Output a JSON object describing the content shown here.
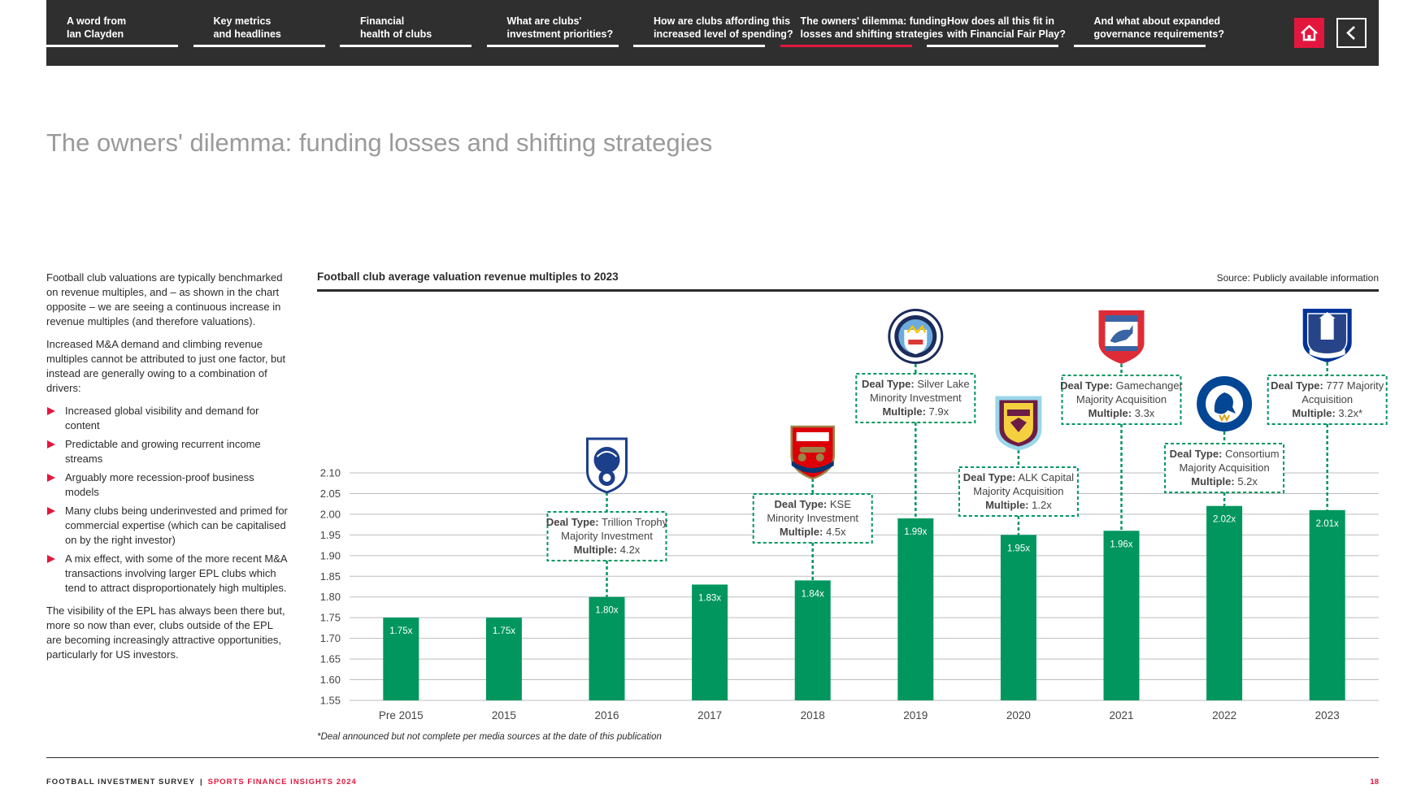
{
  "nav": {
    "items": [
      {
        "line1": "A word from",
        "line2": "Ian Clayden",
        "active": false
      },
      {
        "line1": "Key metrics",
        "line2": "and headlines",
        "active": false
      },
      {
        "line1": "Financial",
        "line2": "health of clubs",
        "active": false
      },
      {
        "line1": "What are clubs'",
        "line2": "investment priorities?",
        "active": false
      },
      {
        "line1": "How are clubs affording this",
        "line2": "increased level of spending?",
        "active": false
      },
      {
        "line1": "The owners' dilemma: funding",
        "line2": "losses and shifting strategies",
        "active": true
      },
      {
        "line1": "How does all this fit in",
        "line2": "with Financial Fair Play?",
        "active": false
      },
      {
        "line1": "And what about expanded",
        "line2": "governance requirements?",
        "active": false
      }
    ],
    "home_icon": "home-icon",
    "prev_icon": "chevron-left-icon",
    "next_icon": "chevron-right-icon",
    "accent": "#e3173e"
  },
  "page_title": "The owners' dilemma: funding losses and shifting strategies",
  "body": {
    "para1": "Football club valuations are typically benchmarked on revenue multiples, and – as shown in the chart opposite – we are seeing a continuous increase in revenue multiples (and therefore valuations).",
    "para2": "Increased M&A demand and climbing revenue multiples cannot be attributed to just one factor, but instead are generally owing to a combination of drivers:",
    "bullets": [
      "Increased global visibility and demand for content",
      "Predictable and growing recurrent income streams",
      "Arguably more recession-proof business models",
      "Many clubs being underinvested and primed for commercial expertise (which can be capitalised on by the right investor)",
      "A mix effect, with some of the more recent M&A transactions involving larger EPL clubs which tend to attract disproportionately high multiples."
    ],
    "para3": "The visibility of the EPL has always been there but, more so now than ever, clubs outside of the EPL are becoming increasingly attractive opportunities, particularly for US investors."
  },
  "chart_data": {
    "type": "bar",
    "title": "Football club average valuation revenue multiples to 2023",
    "source": "Source: Publicly available information",
    "categories": [
      "Pre 2015",
      "2015",
      "2016",
      "2017",
      "2018",
      "2019",
      "2020",
      "2021",
      "2022",
      "2023"
    ],
    "values": [
      1.75,
      1.75,
      1.8,
      1.83,
      1.84,
      1.99,
      1.95,
      1.96,
      2.02,
      2.01
    ],
    "value_labels": [
      "1.75x",
      "1.75x",
      "1.80x",
      "1.83x",
      "1.84x",
      "1.99x",
      "1.95x",
      "1.96x",
      "2.02x",
      "2.01x"
    ],
    "yticks": [
      "2.10",
      "2.05",
      "2.00",
      "1.95",
      "1.90",
      "1.85",
      "1.80",
      "1.75",
      "1.70",
      "1.65",
      "1.60",
      "1.55"
    ],
    "ylim": [
      1.55,
      2.1
    ],
    "bar_color": "#00965e",
    "grid": true,
    "deal_type_label": "Deal Type:",
    "multiple_label": "Multiple:",
    "annotations": [
      {
        "category": "2016",
        "club_icon": "birmingham-city-crest-icon",
        "deal_type": "Trillion Trophy",
        "deal_line2": "Majority Investment",
        "multiple": "4.2x"
      },
      {
        "category": "2018",
        "club_icon": "arsenal-crest-icon",
        "deal_type": "KSE",
        "deal_line2": "Minority Investment",
        "multiple": "4.5x"
      },
      {
        "category": "2019",
        "club_icon": "manchester-city-crest-icon",
        "deal_type": "Silver Lake",
        "deal_line2": "Minority Investment",
        "multiple": "7.9x"
      },
      {
        "category": "2020",
        "club_icon": "burnley-crest-icon",
        "deal_type": "ALK Capital",
        "deal_line2": "Majority Acquisition",
        "multiple": "1.2x"
      },
      {
        "category": "2021",
        "club_icon": "ipswich-town-crest-icon",
        "deal_type": "Gamechanger",
        "deal_line2": "Majority Acquisition",
        "multiple": "3.3x"
      },
      {
        "category": "2022",
        "club_icon": "chelsea-crest-icon",
        "deal_type": "Consortium",
        "deal_line2": "Majority Acquisition",
        "multiple": "5.2x"
      },
      {
        "category": "2023",
        "club_icon": "everton-crest-icon",
        "deal_type": "777 Majority",
        "deal_line2": "Acquisition",
        "multiple": "3.2x*"
      }
    ],
    "footnote": "*Deal announced but not complete per media sources at the date of this publication"
  },
  "footer": {
    "left": "FOOTBALL INVESTMENT SURVEY",
    "separator": "|",
    "right": "SPORTS FINANCE INSIGHTS 2024",
    "page": "18"
  }
}
